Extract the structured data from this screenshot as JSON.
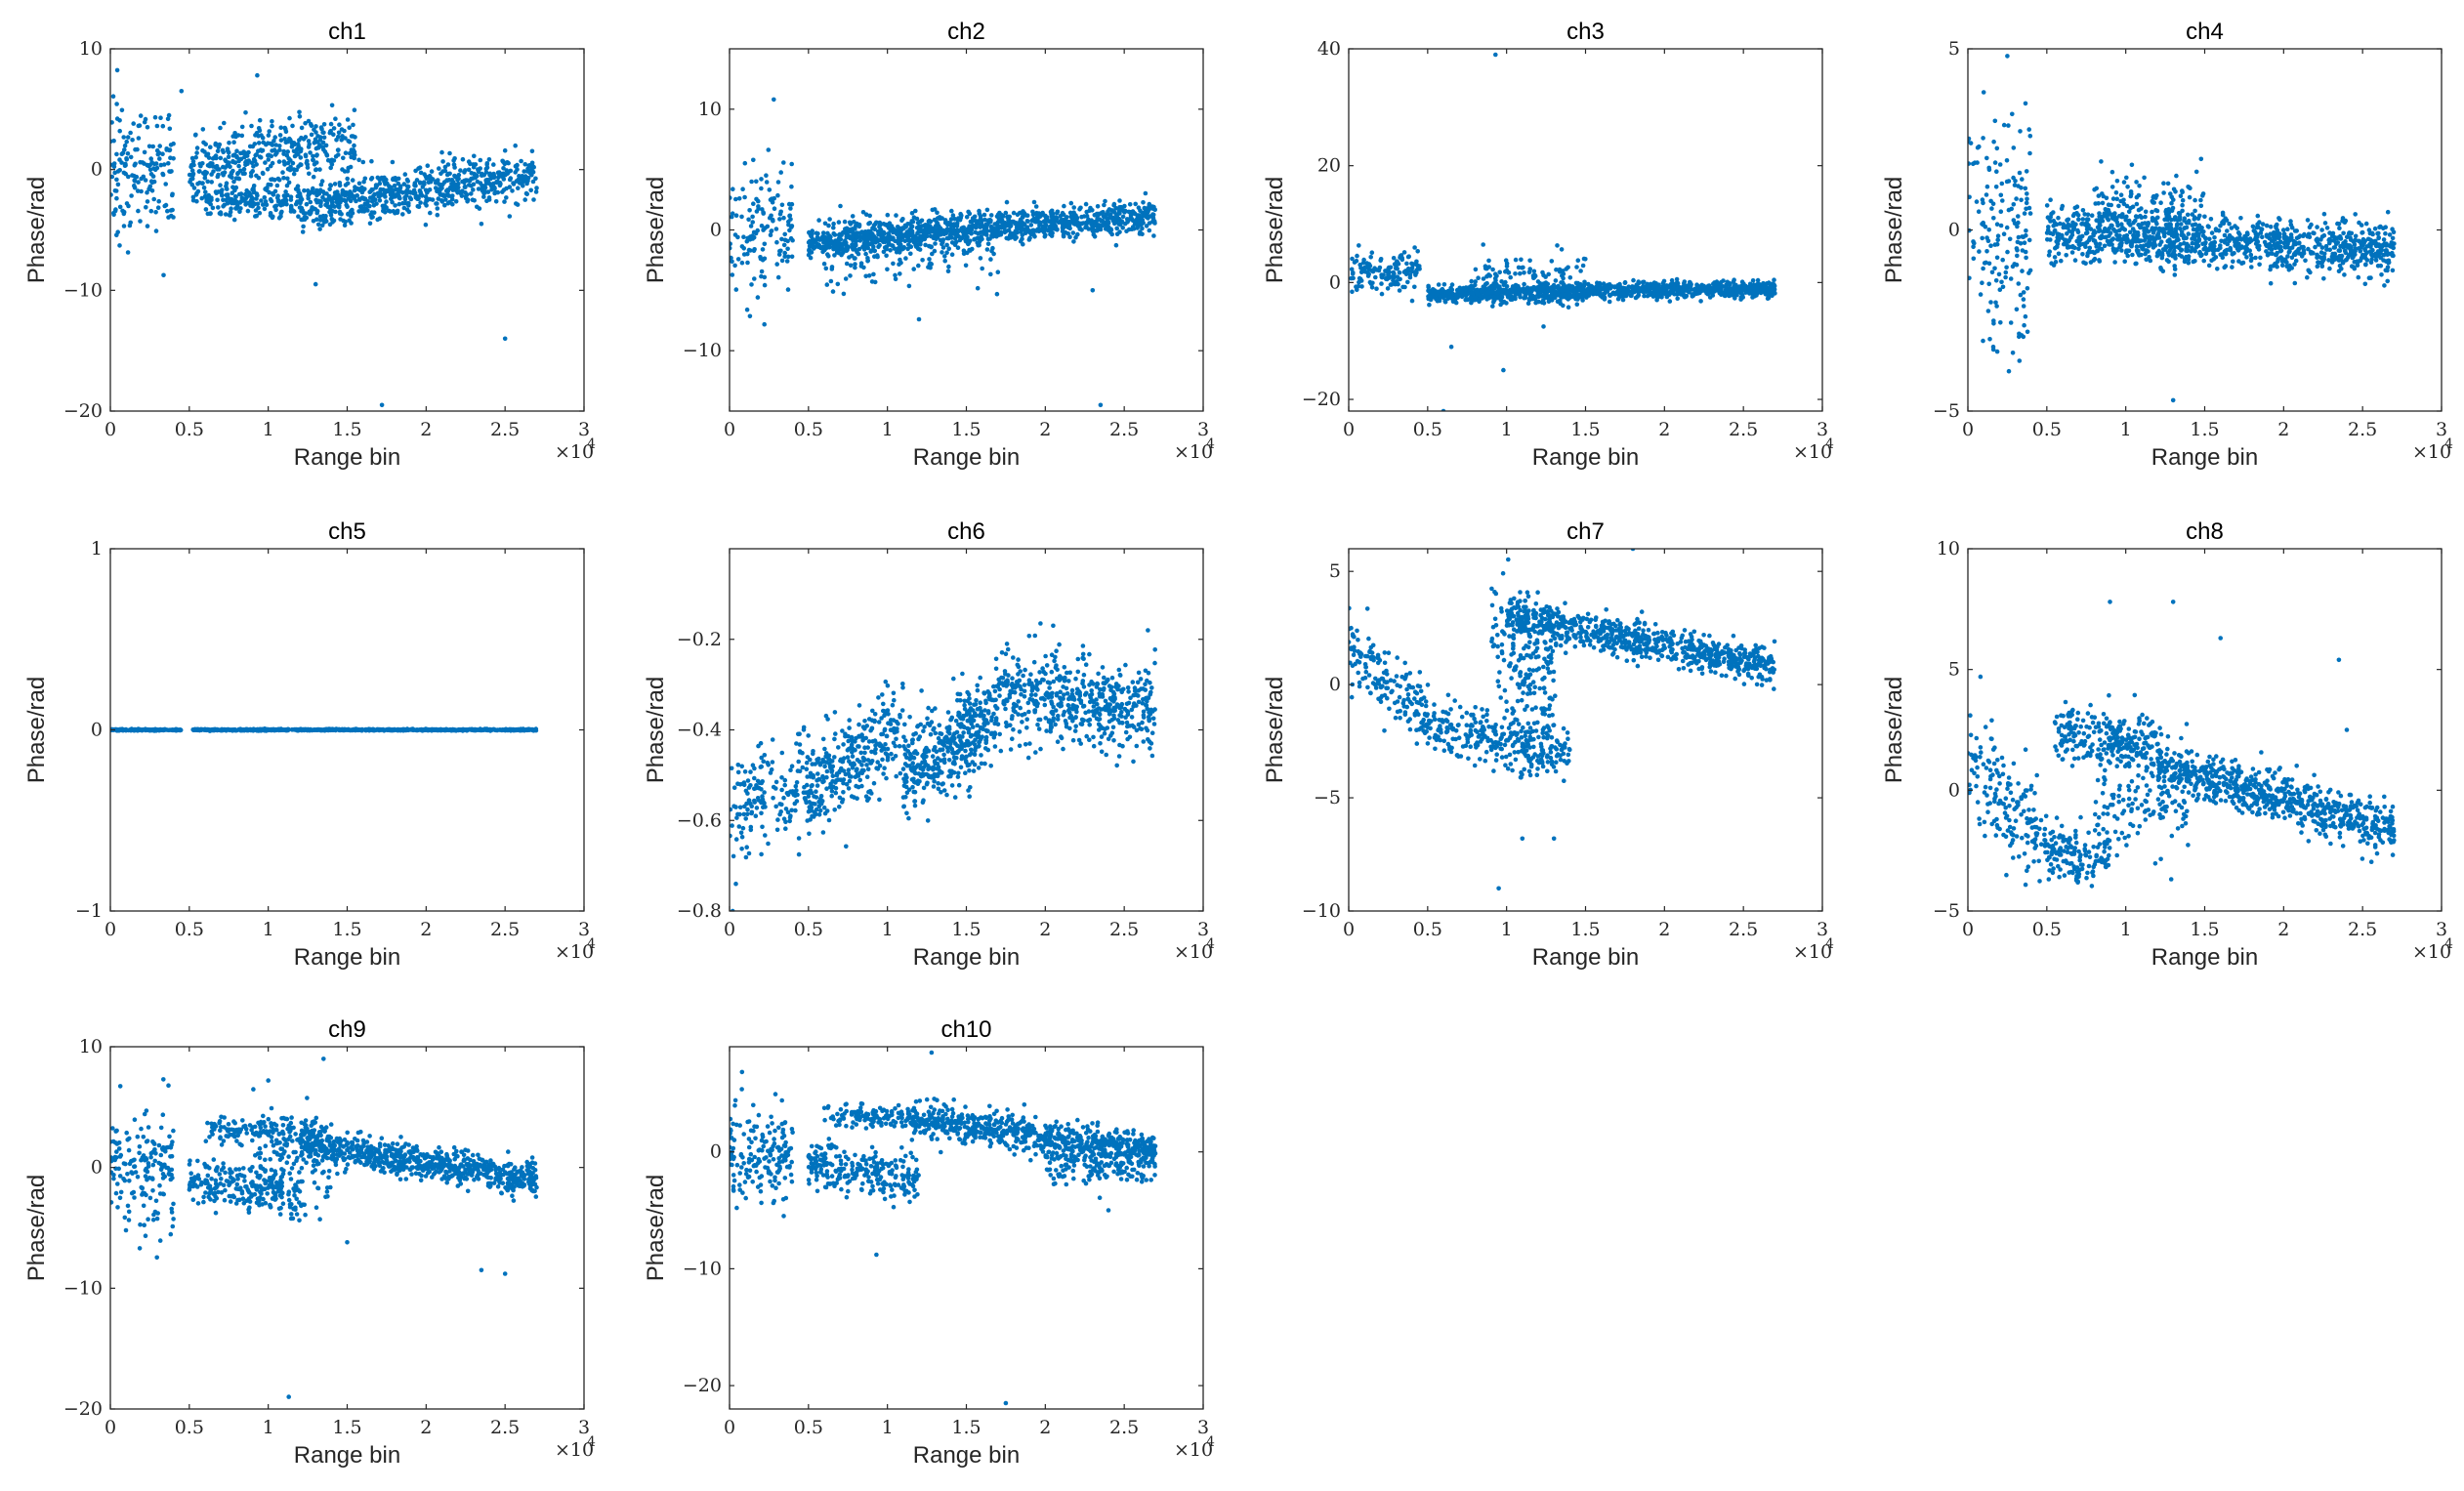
{
  "colors": {
    "marker": "#0072BD",
    "axis": "#262626"
  },
  "chart_data": [
    {
      "type": "scatter",
      "title": "ch1",
      "xlabel": "Range bin",
      "ylabel": "Phase/rad",
      "xlim": [
        0,
        30000
      ],
      "ylim": [
        -20,
        10
      ],
      "xticks": [
        0,
        0.5,
        1,
        1.5,
        2,
        2.5,
        3
      ],
      "xtick_labels": [
        "0",
        "0.5",
        "1",
        "1.5",
        "2",
        "2.5",
        "3"
      ],
      "yticks": [
        -20,
        -10,
        0,
        10
      ],
      "ytick_labels": [
        "−20",
        "−10",
        "0",
        "10"
      ],
      "x_exponent": {
        "base": "×10",
        "power": "4"
      },
      "n_points": 1400,
      "clusters": [
        {
          "x": [
            0,
            4000
          ],
          "y0": 0,
          "y1": 0,
          "spread": 2.5,
          "weight": 0.12
        },
        {
          "x": [
            5000,
            15500
          ],
          "y0": 0,
          "y1": 2.5,
          "spread": 1.3,
          "weight": 0.28
        },
        {
          "x": [
            12000,
            27000
          ],
          "y0": -3,
          "y1": -0.5,
          "spread": 1.0,
          "weight": 0.48
        },
        {
          "x": [
            6000,
            12000
          ],
          "y0": -2.5,
          "y1": -2.5,
          "spread": 0.8,
          "weight": 0.12
        }
      ],
      "outliers": [
        [
          4500,
          6.5
        ],
        [
          9300,
          7.8
        ],
        [
          13000,
          -9.5
        ],
        [
          17200,
          -19.5
        ],
        [
          25000,
          -14
        ],
        [
          23500,
          -4.5
        ]
      ]
    },
    {
      "type": "scatter",
      "title": "ch2",
      "xlabel": "Range bin",
      "ylabel": "Phase/rad",
      "xlim": [
        0,
        30000
      ],
      "ylim": [
        -15,
        15
      ],
      "xticks": [
        0,
        0.5,
        1,
        1.5,
        2,
        2.5,
        3
      ],
      "xtick_labels": [
        "0",
        "0.5",
        "1",
        "1.5",
        "2",
        "2.5",
        "3"
      ],
      "yticks": [
        -10,
        0,
        10
      ],
      "ytick_labels": [
        "−10",
        "0",
        "10"
      ],
      "x_exponent": {
        "base": "×10",
        "power": "4"
      },
      "n_points": 1400,
      "clusters": [
        {
          "x": [
            0,
            4000
          ],
          "y0": 0,
          "y1": 0,
          "spread": 2.6,
          "weight": 0.1
        },
        {
          "x": [
            5000,
            27000
          ],
          "y0": -1,
          "y1": 1.2,
          "spread": 0.7,
          "weight": 0.78
        },
        {
          "x": [
            6000,
            17000
          ],
          "y0": -2,
          "y1": -1,
          "spread": 1.6,
          "weight": 0.12
        }
      ],
      "outliers": [
        [
          2800,
          10.8
        ],
        [
          1500,
          5.8
        ],
        [
          12000,
          -7.4
        ],
        [
          23500,
          -14.5
        ],
        [
          23000,
          -5
        ]
      ]
    },
    {
      "type": "scatter",
      "title": "ch3",
      "xlabel": "Range bin",
      "ylabel": "Phase/rad",
      "xlim": [
        0,
        30000
      ],
      "ylim": [
        -22,
        40
      ],
      "xticks": [
        0,
        0.5,
        1,
        1.5,
        2,
        2.5,
        3
      ],
      "xtick_labels": [
        "0",
        "0.5",
        "1",
        "1.5",
        "2",
        "2.5",
        "3"
      ],
      "yticks": [
        -20,
        0,
        20,
        40
      ],
      "ytick_labels": [
        "−20",
        "0",
        "20",
        "40"
      ],
      "x_exponent": {
        "base": "×10",
        "power": "4"
      },
      "n_points": 1400,
      "clusters": [
        {
          "x": [
            0,
            4500
          ],
          "y0": 2,
          "y1": 2,
          "spread": 1.8,
          "weight": 0.1
        },
        {
          "x": [
            5000,
            27000
          ],
          "y0": -2,
          "y1": -1,
          "spread": 0.7,
          "weight": 0.8
        },
        {
          "x": [
            8000,
            15000
          ],
          "y0": 1,
          "y1": 0,
          "spread": 2.2,
          "weight": 0.1
        }
      ],
      "outliers": [
        [
          9300,
          39
        ],
        [
          9800,
          -15
        ],
        [
          6500,
          -11
        ],
        [
          6000,
          -22
        ]
      ]
    },
    {
      "type": "scatter",
      "title": "ch4",
      "xlabel": "Range bin",
      "ylabel": "Phase/rad",
      "xlim": [
        0,
        30000
      ],
      "ylim": [
        -5,
        5
      ],
      "xticks": [
        0,
        0.5,
        1,
        1.5,
        2,
        2.5,
        3
      ],
      "xtick_labels": [
        "0",
        "0.5",
        "1",
        "1.5",
        "2",
        "2.5",
        "3"
      ],
      "yticks": [
        -5,
        0,
        5
      ],
      "ytick_labels": [
        "−5",
        "0",
        "5"
      ],
      "x_exponent": {
        "base": "×10",
        "power": "4"
      },
      "n_points": 1400,
      "clusters": [
        {
          "x": [
            0,
            4000
          ],
          "y0": -0.3,
          "y1": -0.3,
          "spread": 1.6,
          "weight": 0.12
        },
        {
          "x": [
            5000,
            27000
          ],
          "y0": -0.1,
          "y1": -0.6,
          "spread": 0.35,
          "weight": 0.74
        },
        {
          "x": [
            8000,
            15000
          ],
          "y0": 0.5,
          "y1": 0.3,
          "spread": 0.6,
          "weight": 0.14
        }
      ],
      "outliers": [
        [
          2500,
          4.8
        ],
        [
          1000,
          3.8
        ],
        [
          2800,
          3.2
        ],
        [
          2600,
          -3.9
        ],
        [
          13000,
          -4.7
        ],
        [
          700,
          2.3
        ]
      ]
    },
    {
      "type": "scatter",
      "title": "ch5",
      "xlabel": "Range bin",
      "ylabel": "Phase/rad",
      "xlim": [
        0,
        30000
      ],
      "ylim": [
        -1,
        1
      ],
      "xticks": [
        0,
        0.5,
        1,
        1.5,
        2,
        2.5,
        3
      ],
      "xtick_labels": [
        "0",
        "0.5",
        "1",
        "1.5",
        "2",
        "2.5",
        "3"
      ],
      "yticks": [
        -1,
        0,
        1
      ],
      "ytick_labels": [
        "−1",
        "0",
        "1"
      ],
      "x_exponent": {
        "base": "×10",
        "power": "4"
      },
      "n_points": 1000,
      "clusters": [
        {
          "x": [
            0,
            4500
          ],
          "y0": 0,
          "y1": 0,
          "spread": 0.002,
          "weight": 0.16
        },
        {
          "x": [
            5200,
            27000
          ],
          "y0": 0,
          "y1": 0,
          "spread": 0.002,
          "weight": 0.84
        }
      ],
      "outliers": []
    },
    {
      "type": "scatter",
      "title": "ch6",
      "xlabel": "Range bin",
      "ylabel": "Phase/rad",
      "xlim": [
        0,
        30000
      ],
      "ylim": [
        -0.8,
        0
      ],
      "xticks": [
        0,
        0.5,
        1,
        1.5,
        2,
        2.5,
        3
      ],
      "xtick_labels": [
        "0",
        "0.5",
        "1",
        "1.5",
        "2",
        "2.5",
        "3"
      ],
      "yticks": [
        -0.8,
        -0.6,
        -0.4,
        -0.2
      ],
      "ytick_labels": [
        "−0.8",
        "−0.6",
        "−0.4",
        "−0.2"
      ],
      "x_exponent": {
        "base": "×10",
        "power": "4"
      },
      "n_points": 1400,
      "clusters": [
        {
          "x": [
            0,
            5000
          ],
          "y0": -0.58,
          "y1": -0.5,
          "spread": 0.06,
          "weight": 0.12
        },
        {
          "x": [
            5000,
            11000
          ],
          "y0": -0.54,
          "y1": -0.38,
          "spread": 0.05,
          "weight": 0.22
        },
        {
          "x": [
            11000,
            17000
          ],
          "y0": -0.5,
          "y1": -0.36,
          "spread": 0.05,
          "weight": 0.3
        },
        {
          "x": [
            17000,
            27000
          ],
          "y0": -0.32,
          "y1": -0.36,
          "spread": 0.05,
          "weight": 0.36
        }
      ],
      "outliers": [
        [
          200,
          -0.8
        ],
        [
          26500,
          -0.18
        ],
        [
          20500,
          -0.17
        ],
        [
          400,
          -0.74
        ]
      ]
    },
    {
      "type": "scatter",
      "title": "ch7",
      "xlabel": "Range bin",
      "ylabel": "Phase/rad",
      "xlim": [
        0,
        30000
      ],
      "ylim": [
        -10,
        6
      ],
      "xticks": [
        0,
        0.5,
        1,
        1.5,
        2,
        2.5,
        3
      ],
      "xtick_labels": [
        "0",
        "0.5",
        "1",
        "1.5",
        "2",
        "2.5",
        "3"
      ],
      "yticks": [
        -10,
        -5,
        0,
        5
      ],
      "ytick_labels": [
        "−10",
        "−5",
        "0",
        "5"
      ],
      "x_exponent": {
        "base": "×10",
        "power": "4"
      },
      "n_points": 1400,
      "clusters": [
        {
          "x": [
            0,
            5000
          ],
          "y0": 1.5,
          "y1": -1.5,
          "spread": 0.7,
          "weight": 0.12
        },
        {
          "x": [
            5000,
            14000
          ],
          "y0": -1.8,
          "y1": -3,
          "spread": 0.6,
          "weight": 0.22
        },
        {
          "x": [
            10000,
            27000
          ],
          "y0": 3,
          "y1": 0.8,
          "spread": 0.4,
          "weight": 0.54
        },
        {
          "x": [
            9000,
            13000
          ],
          "y0": 2,
          "y1": 0,
          "spread": 1.4,
          "weight": 0.12
        }
      ],
      "outliers": [
        [
          18000,
          6
        ],
        [
          9500,
          -9
        ],
        [
          13000,
          -6.8
        ],
        [
          11000,
          -6.8
        ]
      ]
    },
    {
      "type": "scatter",
      "title": "ch8",
      "xlabel": "Range bin",
      "ylabel": "Phase/rad",
      "xlim": [
        0,
        30000
      ],
      "ylim": [
        -5,
        10
      ],
      "xticks": [
        0,
        0.5,
        1,
        1.5,
        2,
        2.5,
        3
      ],
      "xtick_labels": [
        "0",
        "0.5",
        "1",
        "1.5",
        "2",
        "2.5",
        "3"
      ],
      "yticks": [
        -5,
        0,
        5,
        10
      ],
      "ytick_labels": [
        "−5",
        "0",
        "5",
        "10"
      ],
      "x_exponent": {
        "base": "×10",
        "power": "4"
      },
      "n_points": 1400,
      "clusters": [
        {
          "x": [
            0,
            5000
          ],
          "y0": 1,
          "y1": -2,
          "spread": 1.0,
          "weight": 0.12
        },
        {
          "x": [
            5000,
            9000
          ],
          "y0": -2.5,
          "y1": -3,
          "spread": 0.6,
          "weight": 0.1
        },
        {
          "x": [
            5500,
            12000
          ],
          "y0": 2.5,
          "y1": 1.8,
          "spread": 0.6,
          "weight": 0.18
        },
        {
          "x": [
            12000,
            27000
          ],
          "y0": 1,
          "y1": -1.6,
          "spread": 0.5,
          "weight": 0.5
        },
        {
          "x": [
            8000,
            14000
          ],
          "y0": -1,
          "y1": 0,
          "spread": 1.4,
          "weight": 0.1
        }
      ],
      "outliers": [
        [
          9000,
          7.8
        ],
        [
          13000,
          7.8
        ],
        [
          16000,
          6.3
        ],
        [
          23500,
          5.4
        ],
        [
          24000,
          2.5
        ],
        [
          800,
          4.7
        ]
      ]
    },
    {
      "type": "scatter",
      "title": "ch9",
      "xlabel": "Range bin",
      "ylabel": "Phase/rad",
      "xlim": [
        0,
        30000
      ],
      "ylim": [
        -20,
        10
      ],
      "xticks": [
        0,
        0.5,
        1,
        1.5,
        2,
        2.5,
        3
      ],
      "xtick_labels": [
        "0",
        "0.5",
        "1",
        "1.5",
        "2",
        "2.5",
        "3"
      ],
      "yticks": [
        -20,
        -10,
        0,
        10
      ],
      "ytick_labels": [
        "−20",
        "−10",
        "0",
        "10"
      ],
      "x_exponent": {
        "base": "×10",
        "power": "4"
      },
      "n_points": 1400,
      "clusters": [
        {
          "x": [
            0,
            4000
          ],
          "y0": 0,
          "y1": 0,
          "spread": 2.4,
          "weight": 0.12
        },
        {
          "x": [
            5000,
            12000
          ],
          "y0": -1,
          "y1": -2.5,
          "spread": 1.0,
          "weight": 0.16
        },
        {
          "x": [
            6000,
            13000
          ],
          "y0": 3,
          "y1": 3,
          "spread": 0.6,
          "weight": 0.1
        },
        {
          "x": [
            12000,
            27000
          ],
          "y0": 2,
          "y1": -1,
          "spread": 0.7,
          "weight": 0.52
        },
        {
          "x": [
            9000,
            14000
          ],
          "y0": 0,
          "y1": 0,
          "spread": 2.0,
          "weight": 0.1
        }
      ],
      "outliers": [
        [
          11300,
          -19
        ],
        [
          13500,
          9
        ],
        [
          10000,
          7.2
        ],
        [
          23500,
          -8.5
        ],
        [
          25000,
          -8.8
        ],
        [
          15000,
          -6.2
        ]
      ]
    },
    {
      "type": "scatter",
      "title": "ch10",
      "xlabel": "Range bin",
      "ylabel": "Phase/rad",
      "xlim": [
        0,
        30000
      ],
      "ylim": [
        -22,
        9
      ],
      "xticks": [
        0,
        0.5,
        1,
        1.5,
        2,
        2.5,
        3
      ],
      "xtick_labels": [
        "0",
        "0.5",
        "1",
        "1.5",
        "2",
        "2.5",
        "3"
      ],
      "yticks": [
        -20,
        -10,
        0
      ],
      "ytick_labels": [
        "−20",
        "−10",
        "0"
      ],
      "x_exponent": {
        "base": "×10",
        "power": "4"
      },
      "n_points": 1400,
      "clusters": [
        {
          "x": [
            0,
            4000
          ],
          "y0": 0,
          "y1": 0,
          "spread": 2.0,
          "weight": 0.12
        },
        {
          "x": [
            5000,
            12000
          ],
          "y0": -1,
          "y1": -2.5,
          "spread": 1.0,
          "weight": 0.18
        },
        {
          "x": [
            6000,
            11500
          ],
          "y0": 3,
          "y1": 3,
          "spread": 0.5,
          "weight": 0.08
        },
        {
          "x": [
            11500,
            27000
          ],
          "y0": 2.8,
          "y1": 0,
          "spread": 0.7,
          "weight": 0.5
        },
        {
          "x": [
            20000,
            27000
          ],
          "y0": -1,
          "y1": -1,
          "spread": 0.9,
          "weight": 0.12
        }
      ],
      "outliers": [
        [
          9300,
          -8.8
        ],
        [
          12800,
          8.5
        ],
        [
          17500,
          -21.5
        ],
        [
          24000,
          -5
        ],
        [
          1500,
          4
        ]
      ]
    }
  ]
}
